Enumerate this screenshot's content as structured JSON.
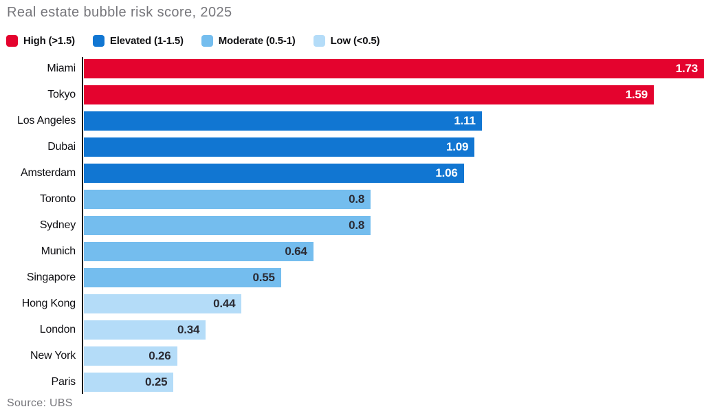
{
  "title": "Real estate bubble risk score, 2025",
  "source": "Source: UBS",
  "colors": {
    "high": "#e4032e",
    "elevated": "#1176d2",
    "moderate": "#74bdee",
    "low": "#b4dcf8",
    "title_text": "#76767b",
    "axis_line": "#1a1a1a",
    "value_on_dark": "#ffffff",
    "value_on_light": "#2b2b33"
  },
  "legend": [
    {
      "label": "High (>1.5)",
      "tier": "high"
    },
    {
      "label": "Elevated (1-1.5)",
      "tier": "elevated"
    },
    {
      "label": "Moderate (0.5-1)",
      "tier": "moderate"
    },
    {
      "label": "Low (<0.5)",
      "tier": "low"
    }
  ],
  "chart_data": {
    "type": "bar",
    "orientation": "horizontal",
    "title": "Real estate bubble risk score, 2025",
    "xlabel": "",
    "ylabel": "",
    "xlim": [
      0,
      1.73
    ],
    "grid": false,
    "legend_position": "top",
    "categories": [
      "Miami",
      "Tokyo",
      "Los Angeles",
      "Dubai",
      "Amsterdam",
      "Toronto",
      "Sydney",
      "Munich",
      "Singapore",
      "Hong Kong",
      "London",
      "New York",
      "Paris"
    ],
    "values": [
      1.73,
      1.59,
      1.11,
      1.09,
      1.06,
      0.8,
      0.8,
      0.64,
      0.55,
      0.44,
      0.34,
      0.26,
      0.25
    ],
    "value_labels": [
      "1.73",
      "1.59",
      "1.11",
      "1.09",
      "1.06",
      "0.8",
      "0.8",
      "0.64",
      "0.55",
      "0.44",
      "0.34",
      "0.26",
      "0.25"
    ],
    "tiers": [
      "high",
      "high",
      "elevated",
      "elevated",
      "elevated",
      "moderate",
      "moderate",
      "moderate",
      "moderate",
      "low",
      "low",
      "low",
      "low"
    ],
    "source": "Source: UBS"
  }
}
